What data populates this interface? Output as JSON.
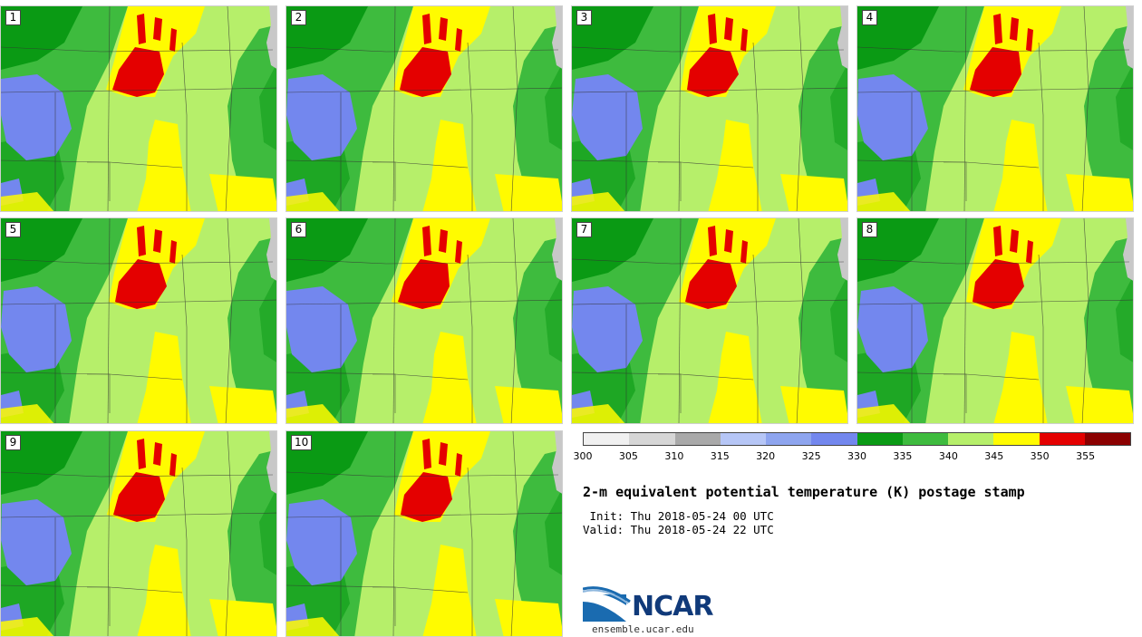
{
  "panels": [
    {
      "label": "1"
    },
    {
      "label": "2"
    },
    {
      "label": "3"
    },
    {
      "label": "4"
    },
    {
      "label": "5"
    },
    {
      "label": "6"
    },
    {
      "label": "7"
    },
    {
      "label": "8"
    },
    {
      "label": "9"
    },
    {
      "label": "10"
    }
  ],
  "legend": {
    "tick_labels": [
      "300",
      "305",
      "310",
      "315",
      "320",
      "325",
      "330",
      "335",
      "340",
      "345",
      "350",
      "355"
    ],
    "colors": [
      "#f0f0f0",
      "#d6d6d6",
      "#a9a9a9",
      "#b6c6f6",
      "#8ea5ef",
      "#7387ee",
      "#0a9a14",
      "#3ebb3e",
      "#b6ef6a",
      "#fffb00",
      "#e40000",
      "#8b0000"
    ]
  },
  "title": "2-m equivalent potential temperature (K) postage stamp",
  "init_line": " Init: Thu 2018-05-24 00 UTC",
  "valid_line": "Valid: Thu 2018-05-24 22 UTC",
  "logo": {
    "text": "NCAR",
    "url": "ensemble.ucar.edu"
  },
  "map_colors": {
    "background": "#b6ef6a",
    "dark_green": "#3ebb3e",
    "deep_green": "#0a9a14",
    "blue": "#7387ee",
    "yellow": "#fffb00",
    "red": "#e40000",
    "lake_gray": "#c8c8c8"
  }
}
